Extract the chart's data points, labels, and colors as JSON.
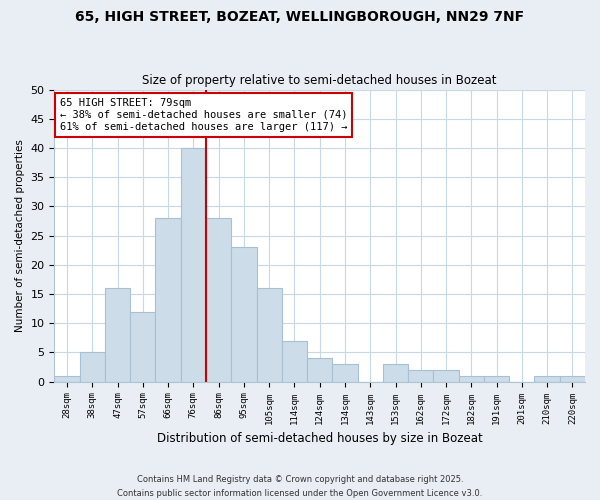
{
  "title": "65, HIGH STREET, BOZEAT, WELLINGBOROUGH, NN29 7NF",
  "subtitle": "Size of property relative to semi-detached houses in Bozeat",
  "xlabel": "Distribution of semi-detached houses by size in Bozeat",
  "ylabel": "Number of semi-detached properties",
  "bar_labels": [
    "28sqm",
    "38sqm",
    "47sqm",
    "57sqm",
    "66sqm",
    "76sqm",
    "86sqm",
    "95sqm",
    "105sqm",
    "114sqm",
    "124sqm",
    "134sqm",
    "143sqm",
    "153sqm",
    "162sqm",
    "172sqm",
    "182sqm",
    "191sqm",
    "201sqm",
    "210sqm",
    "220sqm"
  ],
  "bar_heights": [
    1,
    5,
    16,
    12,
    28,
    40,
    28,
    23,
    16,
    7,
    4,
    3,
    0,
    3,
    2,
    2,
    1,
    1,
    0,
    1,
    1
  ],
  "bar_color": "#ccdce8",
  "bar_edge_color": "#a8c0d4",
  "vline_x": 5.5,
  "vline_color": "#cc0000",
  "annotation_title": "65 HIGH STREET: 79sqm",
  "annotation_line1": "← 38% of semi-detached houses are smaller (74)",
  "annotation_line2": "61% of semi-detached houses are larger (117) →",
  "annotation_box_color": "#ffffff",
  "annotation_box_edge": "#cc0000",
  "ylim": [
    0,
    50
  ],
  "yticks": [
    0,
    5,
    10,
    15,
    20,
    25,
    30,
    35,
    40,
    45,
    50
  ],
  "footer1": "Contains HM Land Registry data © Crown copyright and database right 2025.",
  "footer2": "Contains public sector information licensed under the Open Government Licence v3.0.",
  "bg_color": "#e8eef4",
  "plot_bg_color": "#ffffff",
  "grid_color": "#c8d8e8"
}
